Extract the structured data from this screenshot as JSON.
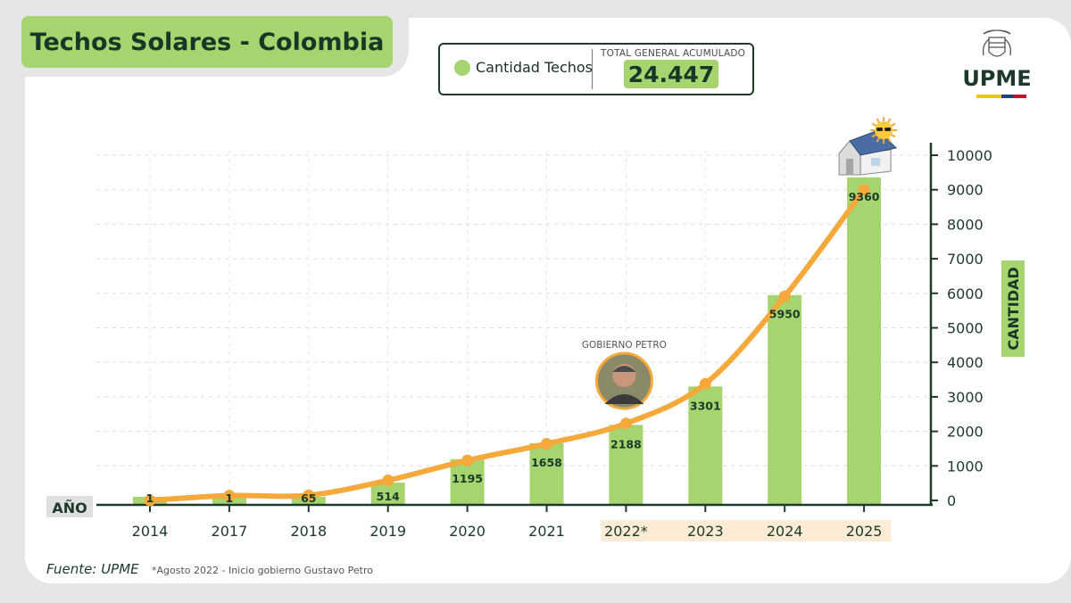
{
  "title": "Techos Solares - Colombia",
  "legend": {
    "series_label": "Cantidad Techos",
    "total_label": "TOTAL GENERAL ACUMULADO",
    "total_value": "24.447"
  },
  "logo": {
    "text": "UPME",
    "icon": "colombia-coat-of-arms-icon"
  },
  "annotation": {
    "label": "GOBIERNO PETRO",
    "icon": "person-portrait-icon"
  },
  "footer": {
    "source": "Fuente: UPME",
    "note": "*Agosto 2022 - Inicio gobierno Gustavo Petro"
  },
  "colors": {
    "bar": "#a6d46f",
    "line": "#f5a93a",
    "axis": "#1f3a2b",
    "highlight": "#fcebd5",
    "title_bg": "#a6d46f"
  },
  "chart_data": {
    "type": "bar",
    "categories": [
      "2014",
      "2017",
      "2018",
      "2019",
      "2020",
      "2021",
      "2022*",
      "2023",
      "2024",
      "2025"
    ],
    "values": [
      1,
      1,
      65,
      514,
      1195,
      1658,
      2188,
      3301,
      5950,
      9360
    ],
    "bar_labels": [
      "1",
      "1",
      "65",
      "514",
      "1195",
      "1658",
      "2188",
      "3301",
      "5950",
      "9360"
    ],
    "line_values": [
      1,
      140,
      150,
      580,
      1160,
      1640,
      2230,
      3380,
      5910,
      9000
    ],
    "xlabel": "AÑO",
    "ylabel": "CANTIDAD",
    "ylim": [
      0,
      10000
    ],
    "yticks": [
      0,
      1000,
      2000,
      3000,
      4000,
      5000,
      6000,
      7000,
      8000,
      9000,
      10000
    ],
    "highlight_range": [
      "2022*",
      "2025"
    ],
    "grid": true,
    "y_axis_side": "right"
  }
}
